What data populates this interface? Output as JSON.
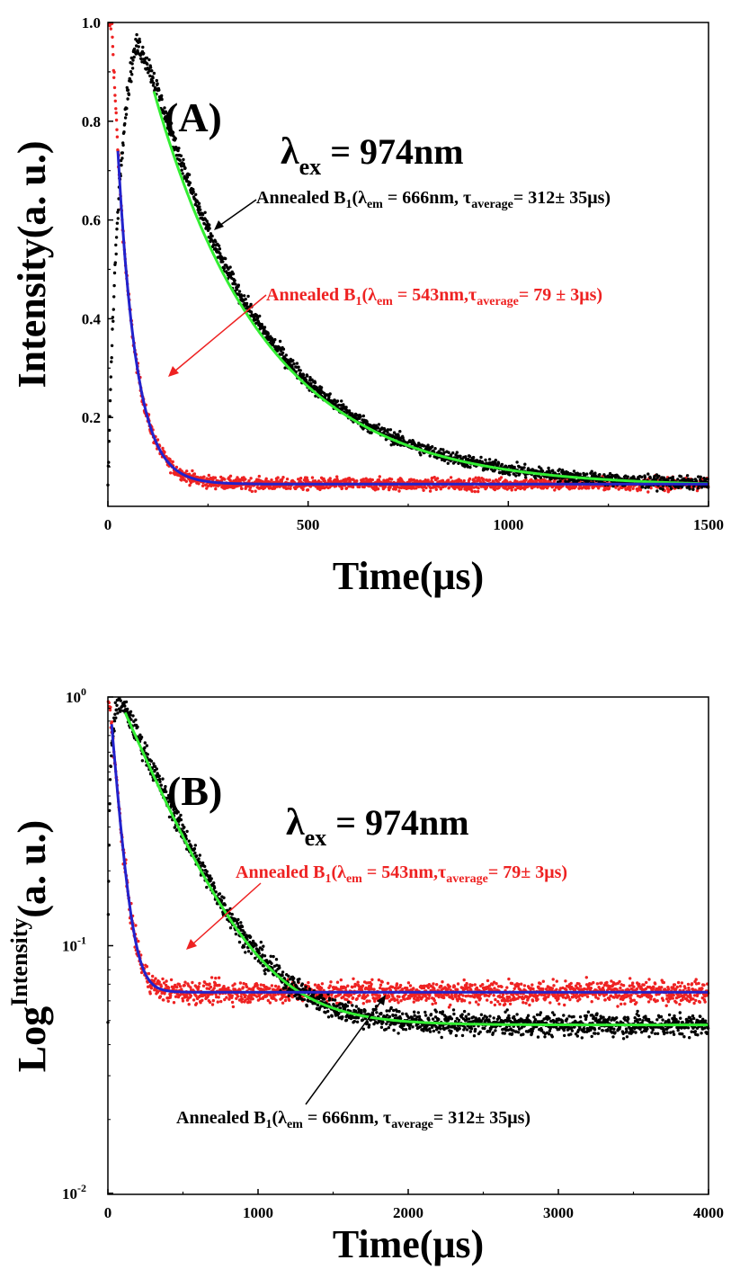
{
  "chart_data": [
    {
      "panel_label": "(A)",
      "type": "scatter",
      "scale": "linear",
      "excitation": {
        "symbol": "λ",
        "sub": "ex",
        "rest": " = 974nm"
      },
      "xlabel": "Time(μs)",
      "ylabel": "Intensity(a. u.)",
      "xlim": [
        0,
        1500
      ],
      "ylim": [
        0.02,
        1.0
      ],
      "xticks": [
        "0",
        "500",
        "1000",
        "1500"
      ],
      "yticks": [
        "0.2",
        "0.4",
        "0.6",
        "0.8",
        "1.0"
      ],
      "series": [
        {
          "color": "#000000",
          "fit_color": "#33ee33",
          "baseline": 0.06,
          "amplitude": 0.94,
          "tau": 280,
          "rise": 30,
          "peak_time": 70,
          "label": {
            "pre": "Annealed B",
            "sub1": "1",
            "mid1": "(λ",
            "sub2": "em",
            "mid2": " = 666nm, τ",
            "sub3": "average",
            "post": "= 312± 35μs)"
          }
        },
        {
          "color": "#ee2222",
          "fit_color": "#2222cc",
          "baseline": 0.065,
          "amplitude": 0.935,
          "tau": 46,
          "rise": 0,
          "peak_time": 10,
          "label": {
            "pre": "Annealed B",
            "sub1": "1",
            "mid1": "(λ",
            "sub2": "em",
            "mid2": " = 543nm,τ",
            "sub3": "average",
            "post": "= 79 ± 3μs)"
          }
        }
      ]
    },
    {
      "panel_label": "(B)",
      "type": "scatter",
      "scale": "log",
      "excitation": {
        "symbol": "λ",
        "sub": "ex",
        "rest": " = 974nm"
      },
      "xlabel": "Time(μs)",
      "ylabel": {
        "pre": "Log",
        "sup": "Intensity",
        "post": "(a. u.)"
      },
      "xlim": [
        0,
        4000
      ],
      "ylim": [
        0.01,
        1
      ],
      "xticks": [
        "0",
        "1000",
        "2000",
        "3000",
        "4000"
      ],
      "yticks": [
        {
          "base": "10",
          "exp": "-2"
        },
        {
          "base": "10",
          "exp": "-1"
        },
        {
          "base": "10",
          "exp": "0"
        }
      ],
      "series": [
        {
          "color": "#000000",
          "fit_color": "#33ee33",
          "baseline": 0.048,
          "amplitude": 0.95,
          "tau": 300,
          "rise": 30,
          "peak_time": 70,
          "label": {
            "pre": "Annealed B",
            "sub1": "1",
            "mid1": "(λ",
            "sub2": "em",
            "mid2": " = 666nm, τ",
            "sub3": "average",
            "post": "= 312± 35μs)"
          }
        },
        {
          "color": "#ee2222",
          "fit_color": "#2222cc",
          "baseline": 0.065,
          "amplitude": 0.935,
          "tau": 55,
          "rise": 0,
          "peak_time": 10,
          "label": {
            "pre": "Annealed B",
            "sub1": "1",
            "mid1": "(λ",
            "sub2": "em",
            "mid2": " = 543nm,τ",
            "sub3": "average",
            "post": "= 79± 3μs)"
          }
        }
      ]
    }
  ]
}
